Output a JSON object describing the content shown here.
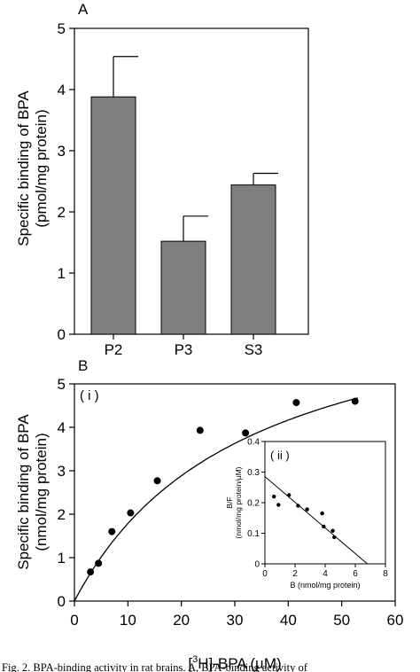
{
  "panel_a": {
    "panel_label": "A",
    "ylabel_line1": "Specific binding of BPA",
    "ylabel_line2": "(pmol/mg protein)"
  },
  "panel_b": {
    "panel_label": "B",
    "sub_label_main": "( i )",
    "sub_label_inset": "( ii )",
    "ylabel_line1": "Specific binding of BPA",
    "ylabel_line2": "(nmol/mg protein)",
    "xlabel_pre": "[",
    "xlabel_sup": "3",
    "xlabel_post": "H]-BPA (µM)",
    "inset_ylabel_line1": "B/F",
    "inset_ylabel_line2": "(nmol/mg protein/µM)",
    "inset_xlabel": "B (nmol/mg protein)"
  },
  "caption": "Fig. 2. BPA-binding activity in rat brains. A, BPA-binding activity of",
  "chart_data": [
    {
      "type": "bar",
      "categories": [
        "P2",
        "P3",
        "S3"
      ],
      "values": [
        3.88,
        1.52,
        2.44
      ],
      "errors": [
        0.66,
        0.41,
        0.19
      ],
      "ylabel": "Specific binding of BPA (pmol/mg protein)",
      "ylim": [
        0,
        5
      ],
      "yticks": [
        0,
        1,
        2,
        3,
        4,
        5
      ],
      "bar_color": "#7f7f7f"
    },
    {
      "type": "scatter",
      "series": [
        {
          "x": [
            3,
            4.5,
            7,
            10.5,
            15.5,
            23.5,
            32,
            41.5,
            52.5
          ],
          "y": [
            0.67,
            0.87,
            1.6,
            2.03,
            2.77,
            3.93,
            3.87,
            4.57,
            4.6
          ]
        }
      ],
      "fit_curve": {
        "model": "saturation",
        "bmax": 7.5,
        "kd": 32
      },
      "xlabel": "[3H]-BPA (µM)",
      "ylabel": "Specific binding of BPA (nmol/mg protein)",
      "xlim": [
        0,
        60
      ],
      "ylim": [
        0,
        5
      ],
      "xticks": [
        0,
        10,
        20,
        30,
        40,
        50,
        60
      ],
      "yticks": [
        0,
        1,
        2,
        3,
        4,
        5
      ]
    },
    {
      "type": "scatter",
      "series": [
        {
          "x": [
            0.6,
            0.9,
            1.6,
            2.2,
            2.8,
            3.8,
            3.9,
            4.5,
            4.6
          ],
          "y": [
            0.22,
            0.193,
            0.225,
            0.19,
            0.178,
            0.165,
            0.122,
            0.108,
            0.087
          ]
        }
      ],
      "fit_line": {
        "x": [
          0,
          6.8
        ],
        "y": [
          0.285,
          0
        ]
      },
      "xlabel": "B (nmol/mg protein)",
      "ylabel": "B/F (nmol/mg protein/µM)",
      "xlim": [
        0,
        8
      ],
      "ylim": [
        0,
        0.4
      ],
      "xticks": [
        0,
        2,
        4,
        6,
        8
      ],
      "yticks": [
        0,
        0.1,
        0.2,
        0.3,
        0.4
      ]
    }
  ]
}
